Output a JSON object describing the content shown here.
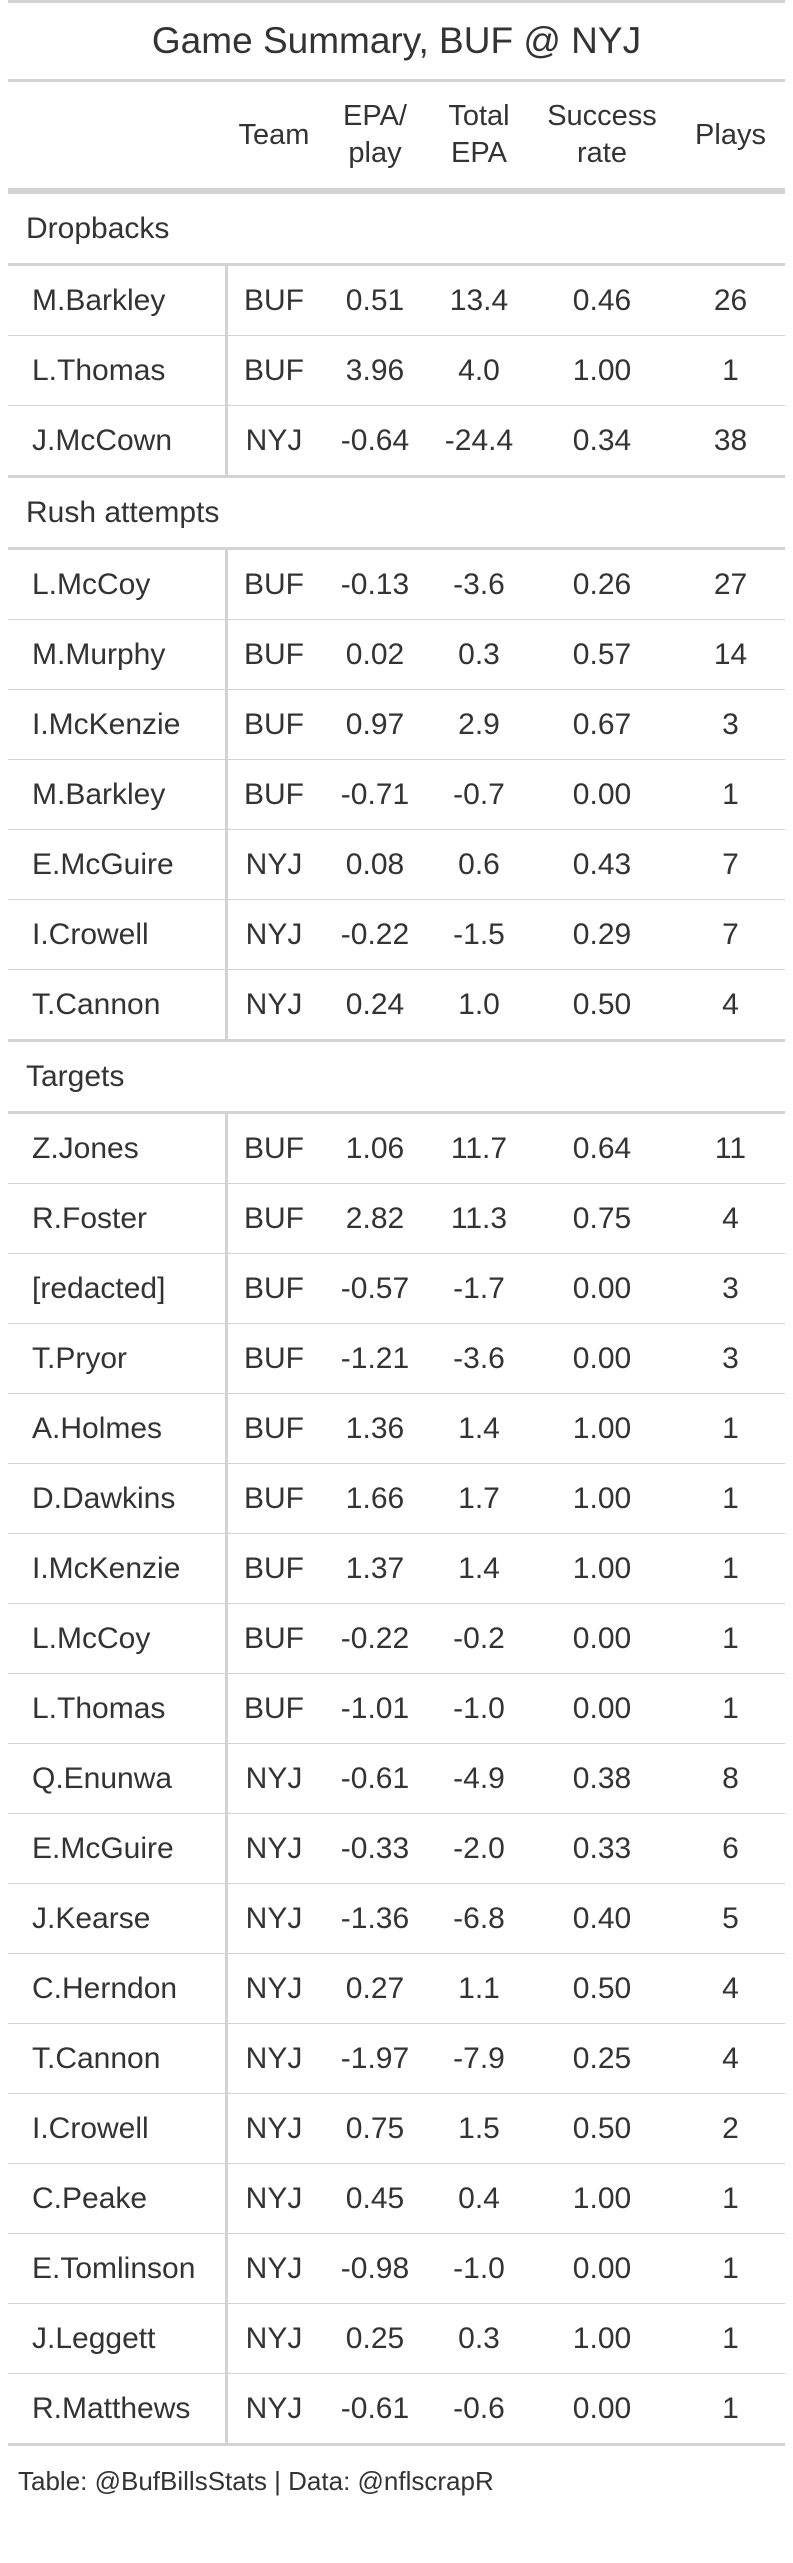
{
  "title": "Game Summary, BUF @ NYJ",
  "columns": {
    "team": "Team",
    "epa_play_1": "EPA/",
    "epa_play_2": "play",
    "total_epa_1": "Total",
    "total_epa_2": "EPA",
    "success_1": "Success",
    "success_2": "rate",
    "plays": "Plays"
  },
  "groups": [
    {
      "label": "Dropbacks",
      "rows": [
        [
          "M.Barkley",
          "BUF",
          "0.51",
          "13.4",
          "0.46",
          "26"
        ],
        [
          "L.Thomas",
          "BUF",
          "3.96",
          "4.0",
          "1.00",
          "1"
        ],
        [
          "J.McCown",
          "NYJ",
          "-0.64",
          "-24.4",
          "0.34",
          "38"
        ]
      ]
    },
    {
      "label": "Rush attempts",
      "rows": [
        [
          "L.McCoy",
          "BUF",
          "-0.13",
          "-3.6",
          "0.26",
          "27"
        ],
        [
          "M.Murphy",
          "BUF",
          "0.02",
          "0.3",
          "0.57",
          "14"
        ],
        [
          "I.McKenzie",
          "BUF",
          "0.97",
          "2.9",
          "0.67",
          "3"
        ],
        [
          "M.Barkley",
          "BUF",
          "-0.71",
          "-0.7",
          "0.00",
          "1"
        ],
        [
          "E.McGuire",
          "NYJ",
          "0.08",
          "0.6",
          "0.43",
          "7"
        ],
        [
          "I.Crowell",
          "NYJ",
          "-0.22",
          "-1.5",
          "0.29",
          "7"
        ],
        [
          "T.Cannon",
          "NYJ",
          "0.24",
          "1.0",
          "0.50",
          "4"
        ]
      ]
    },
    {
      "label": "Targets",
      "rows": [
        [
          "Z.Jones",
          "BUF",
          "1.06",
          "11.7",
          "0.64",
          "11"
        ],
        [
          "R.Foster",
          "BUF",
          "2.82",
          "11.3",
          "0.75",
          "4"
        ],
        [
          "[redacted]",
          "BUF",
          "-0.57",
          "-1.7",
          "0.00",
          "3"
        ],
        [
          "T.Pryor",
          "BUF",
          "-1.21",
          "-3.6",
          "0.00",
          "3"
        ],
        [
          "A.Holmes",
          "BUF",
          "1.36",
          "1.4",
          "1.00",
          "1"
        ],
        [
          "D.Dawkins",
          "BUF",
          "1.66",
          "1.7",
          "1.00",
          "1"
        ],
        [
          "I.McKenzie",
          "BUF",
          "1.37",
          "1.4",
          "1.00",
          "1"
        ],
        [
          "L.McCoy",
          "BUF",
          "-0.22",
          "-0.2",
          "0.00",
          "1"
        ],
        [
          "L.Thomas",
          "BUF",
          "-1.01",
          "-1.0",
          "0.00",
          "1"
        ],
        [
          "Q.Enunwa",
          "NYJ",
          "-0.61",
          "-4.9",
          "0.38",
          "8"
        ],
        [
          "E.McGuire",
          "NYJ",
          "-0.33",
          "-2.0",
          "0.33",
          "6"
        ],
        [
          "J.Kearse",
          "NYJ",
          "-1.36",
          "-6.8",
          "0.40",
          "5"
        ],
        [
          "C.Herndon",
          "NYJ",
          "0.27",
          "1.1",
          "0.50",
          "4"
        ],
        [
          "T.Cannon",
          "NYJ",
          "-1.97",
          "-7.9",
          "0.25",
          "4"
        ],
        [
          "I.Crowell",
          "NYJ",
          "0.75",
          "1.5",
          "0.50",
          "2"
        ],
        [
          "C.Peake",
          "NYJ",
          "0.45",
          "0.4",
          "1.00",
          "1"
        ],
        [
          "E.Tomlinson",
          "NYJ",
          "-0.98",
          "-1.0",
          "0.00",
          "1"
        ],
        [
          "J.Leggett",
          "NYJ",
          "0.25",
          "0.3",
          "1.00",
          "1"
        ],
        [
          "R.Matthews",
          "NYJ",
          "-0.61",
          "-0.6",
          "0.00",
          "1"
        ]
      ]
    }
  ],
  "footer": "Table: @BufBillsStats | Data: @nflscrapR"
}
